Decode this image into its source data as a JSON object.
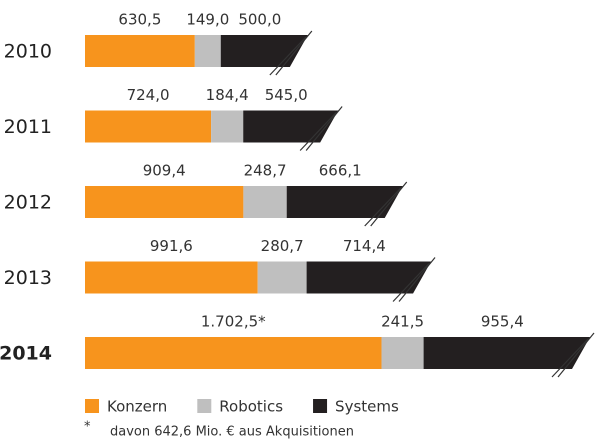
{
  "chart_data": {
    "type": "stacked_bar_horizontal",
    "categories": [
      "2010",
      "2011",
      "2012",
      "2013",
      "2014"
    ],
    "highlight": "2014",
    "series": [
      {
        "name": "Konzern",
        "color": "#f7941d",
        "values": [
          630.5,
          724.0,
          909.4,
          991.6,
          1702.5
        ],
        "value_labels": [
          "630,5",
          "724,0",
          "909,4",
          "991,6",
          "1.702,5*"
        ]
      },
      {
        "name": "Robotics",
        "color": "#bfbfbf",
        "values": [
          149.0,
          184.4,
          248.7,
          280.7,
          241.5
        ],
        "value_labels": [
          "149,0",
          "184,4",
          "248,7",
          "280,7",
          "241,5"
        ]
      },
      {
        "name": "Systems",
        "color": "#231f20",
        "values": [
          500.0,
          545.0,
          666.1,
          714.4,
          955.4
        ],
        "value_labels": [
          "500,0",
          "545,0",
          "666,1",
          "714,4",
          "955,4"
        ]
      }
    ],
    "footnote": {
      "marker": "*",
      "text": "davon 642,6 Mio. € aus Akquisitionen"
    }
  }
}
